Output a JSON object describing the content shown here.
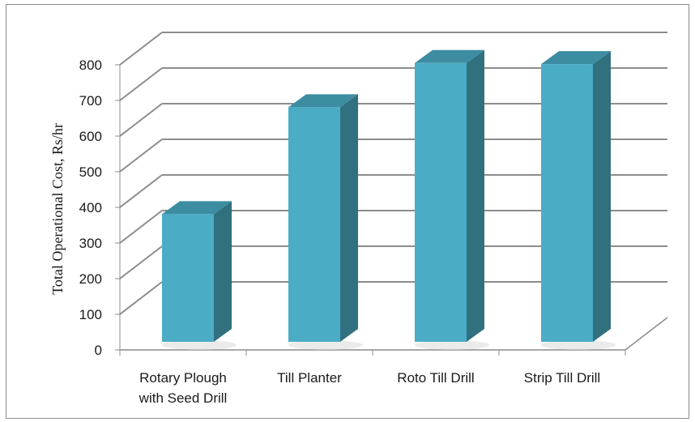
{
  "chart_data": {
    "type": "bar",
    "style": "3d-column",
    "title": "",
    "xlabel": "",
    "ylabel": "Total Operational Cost, Rs/hr",
    "ylim": [
      0,
      800
    ],
    "yticks": [
      "0",
      "100",
      "200",
      "300",
      "400",
      "500",
      "600",
      "700",
      "800"
    ],
    "grid": true,
    "legend": "none",
    "categories": [
      [
        "Rotary Plough",
        "with Seed Drill"
      ],
      [
        "Till Planter"
      ],
      [
        "Roto Till Drill"
      ],
      [
        "Strip Till Drill"
      ]
    ],
    "values": [
      372,
      672,
      796,
      793
    ],
    "colors": {
      "front": "#4bacc6",
      "side": "#31707f",
      "top": "#3d8da2",
      "grid": "#8c8c8c",
      "axis": "#8c8c8c"
    }
  }
}
